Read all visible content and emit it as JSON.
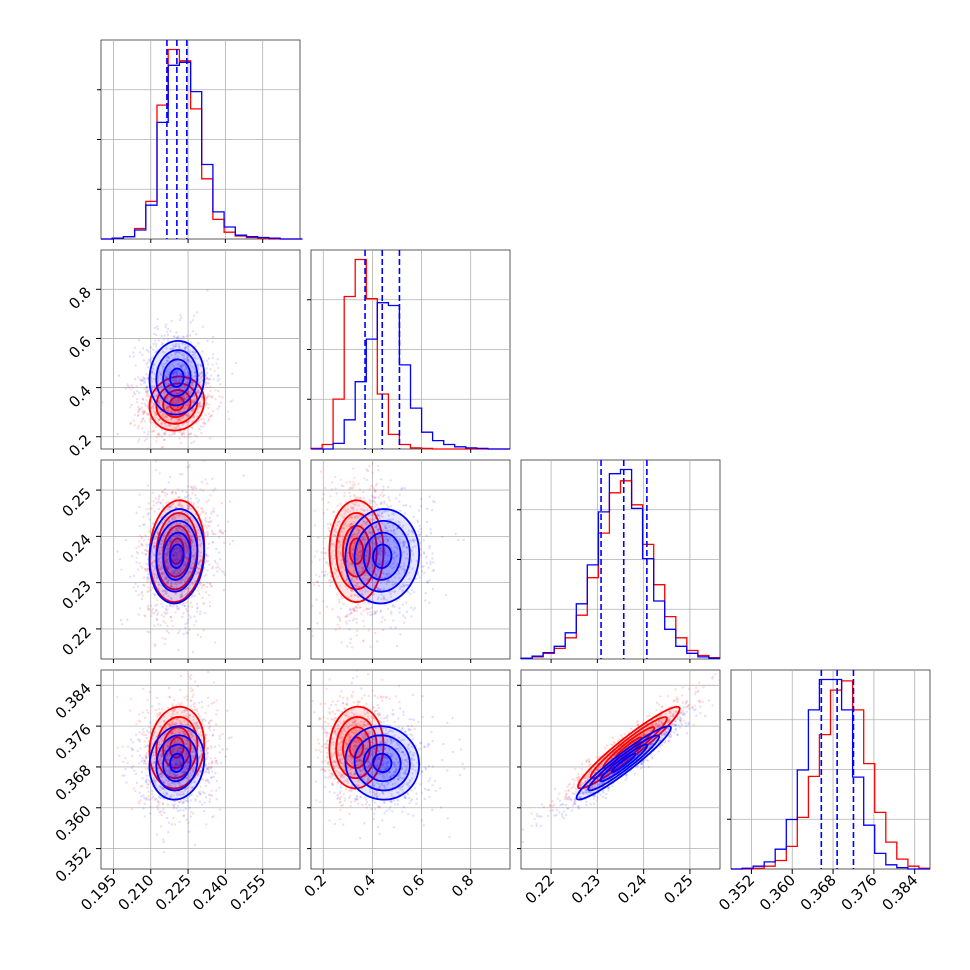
{
  "chart_data": {
    "type": "corner",
    "grid": true,
    "colors": {
      "series_a": "#0000ff",
      "series_b": "#ff0000"
    },
    "params": [
      {
        "xlim": [
          0.19,
          0.27
        ],
        "xticks": [
          "0.195",
          "0.210",
          "0.225",
          "0.240",
          "0.255"
        ],
        "quantiles_series_a": [
          0.2165,
          0.2205,
          0.2245
        ]
      },
      {
        "xlim": [
          0.15,
          0.96
        ],
        "xticks": [
          "0.2",
          "0.4",
          "0.6",
          "0.8"
        ],
        "quantiles_series_a": [
          0.37,
          0.44,
          0.51
        ]
      },
      {
        "xlim": [
          0.2135,
          0.2565
        ],
        "xticks": [
          "0.22",
          "0.23",
          "0.24",
          "0.25"
        ],
        "quantiles_series_a": [
          0.2308,
          0.2357,
          0.2407
        ]
      },
      {
        "xlim": [
          0.348,
          0.387
        ],
        "xticks": [
          "0.352",
          "0.360",
          "0.368",
          "0.376",
          "0.384"
        ],
        "quantiles_series_a": [
          0.3657,
          0.3688,
          0.372
        ]
      }
    ],
    "row_tick_labels": {
      "1": [
        "0.2",
        "0.4",
        "0.6",
        "0.8"
      ],
      "2": [
        "0.22",
        "0.23",
        "0.24",
        "0.25"
      ],
      "3": [
        "0.352",
        "0.360",
        "0.368",
        "0.376",
        "0.384"
      ]
    },
    "histograms": [
      {
        "bin_edges": [
          0.19,
          0.1945,
          0.199,
          0.2035,
          0.208,
          0.2125,
          0.217,
          0.2215,
          0.226,
          0.2305,
          0.235,
          0.2395,
          0.244,
          0.2485,
          0.253,
          0.2575,
          0.262,
          0.2665,
          0.271
        ],
        "series_a": [
          0,
          1,
          3,
          12,
          45,
          155,
          231,
          235,
          196,
          99,
          36,
          16,
          5,
          3,
          2,
          1,
          0,
          0
        ],
        "series_b": [
          0,
          1,
          3,
          14,
          50,
          178,
          252,
          237,
          173,
          80,
          26,
          9,
          4,
          2,
          1,
          0,
          0,
          0
        ]
      },
      {
        "bin_edges": [
          0.15,
          0.195,
          0.24,
          0.285,
          0.33,
          0.375,
          0.42,
          0.465,
          0.51,
          0.555,
          0.6,
          0.645,
          0.69,
          0.735,
          0.78,
          0.825,
          0.87,
          0.915,
          0.96
        ],
        "series_a": [
          0,
          0,
          10,
          52,
          120,
          196,
          261,
          256,
          150,
          73,
          30,
          15,
          8,
          4,
          2,
          1,
          0,
          0
        ],
        "series_b": [
          1,
          8,
          89,
          272,
          338,
          268,
          98,
          26,
          8,
          2,
          1,
          0,
          0,
          0,
          0,
          0,
          0,
          0
        ]
      },
      {
        "bin_edges": [
          0.2135,
          0.21589,
          0.21828,
          0.22067,
          0.22306,
          0.22544,
          0.22783,
          0.23022,
          0.23261,
          0.235,
          0.23739,
          0.23978,
          0.24217,
          0.24456,
          0.24694,
          0.24933,
          0.25172,
          0.25411,
          0.2565
        ],
        "series_a": [
          1,
          4,
          9,
          18,
          37,
          78,
          133,
          208,
          262,
          268,
          213,
          142,
          82,
          42,
          18,
          8,
          3,
          1
        ],
        "series_b": [
          1,
          3,
          8,
          15,
          30,
          62,
          115,
          178,
          235,
          252,
          218,
          162,
          105,
          60,
          30,
          12,
          5,
          2
        ]
      },
      {
        "bin_edges": [
          0.348,
          0.35017,
          0.35233,
          0.3545,
          0.35667,
          0.35883,
          0.361,
          0.36317,
          0.36533,
          0.3675,
          0.36967,
          0.37183,
          0.374,
          0.37617,
          0.37833,
          0.3805,
          0.38267,
          0.38483,
          0.387
        ],
        "series_a": [
          0,
          1,
          4,
          10,
          28,
          70,
          140,
          225,
          268,
          268,
          225,
          130,
          62,
          22,
          6,
          2,
          0,
          0
        ],
        "series_b": [
          0,
          0,
          1,
          4,
          12,
          32,
          73,
          131,
          190,
          253,
          266,
          225,
          149,
          80,
          38,
          14,
          4,
          1
        ]
      }
    ],
    "correlations": {
      "1-0": {
        "series_a": 0.05,
        "series_b": 0.1
      },
      "2-0": {
        "series_a": 0.1,
        "series_b": 0.1
      },
      "2-1": {
        "series_a": 0.05,
        "series_b": 0.0
      },
      "3-0": {
        "series_a": 0.1,
        "series_b": 0.1
      },
      "3-1": {
        "series_a": -0.05,
        "series_b": 0.05
      },
      "3-2": {
        "series_a": 0.95,
        "series_b": 0.95
      }
    },
    "means": {
      "series_a": [
        0.2205,
        0.44,
        0.2357,
        0.3688
      ],
      "series_b": [
        0.2205,
        0.335,
        0.2368,
        0.3718
      ]
    },
    "sds": {
      "series_a": [
        0.0055,
        0.075,
        0.0051,
        0.0036
      ],
      "series_b": [
        0.0055,
        0.055,
        0.0055,
        0.004
      ]
    }
  }
}
